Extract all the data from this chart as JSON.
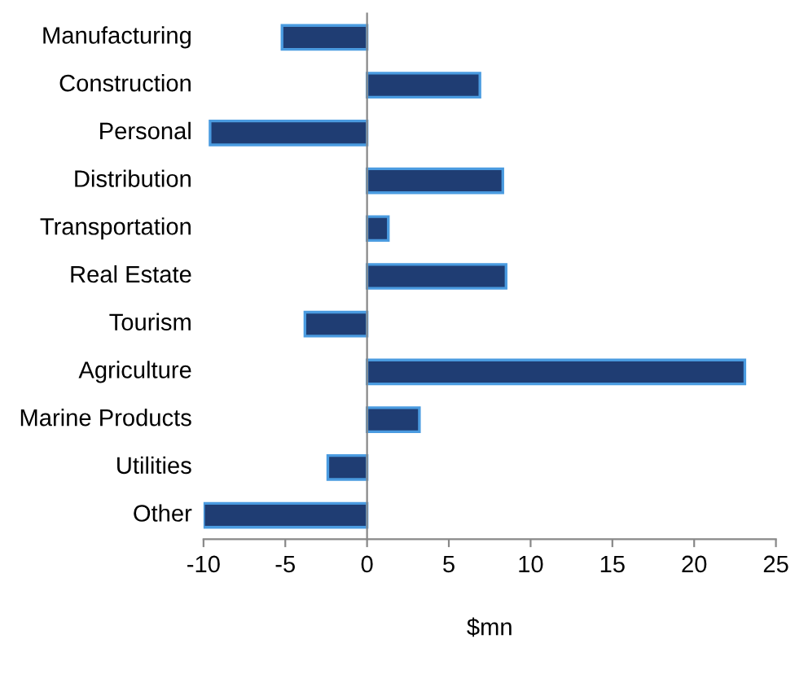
{
  "chart_data": {
    "type": "bar",
    "orientation": "horizontal",
    "xlabel": "$mn",
    "categories": [
      "Manufacturing",
      "Construction",
      "Personal",
      "Distribution",
      "Transportation",
      "Real Estate",
      "Tourism",
      "Agriculture",
      "Marine Products",
      "Utilities",
      "Other"
    ],
    "values": [
      -5.2,
      6.9,
      -9.6,
      8.3,
      1.3,
      8.5,
      -3.8,
      23.1,
      3.2,
      -2.4,
      -10
    ],
    "color": "#1f3d73",
    "xlim": [
      -10,
      25
    ],
    "xticks": [
      -10,
      -5,
      0,
      5,
      10,
      15,
      20,
      25
    ]
  }
}
